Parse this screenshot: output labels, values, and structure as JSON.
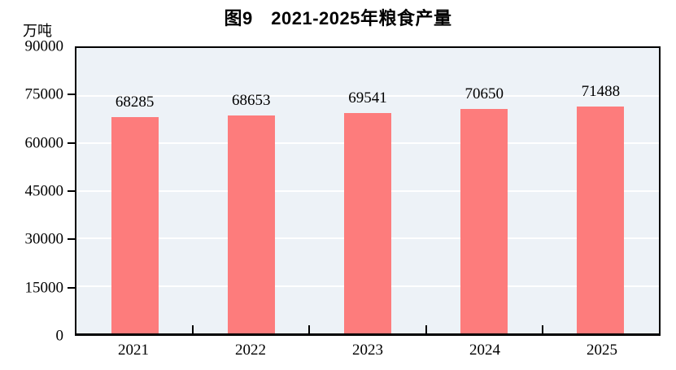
{
  "header": {
    "title": "图9　2021-2025年粮食产量",
    "unit_label": "万吨"
  },
  "chart_data": {
    "type": "bar",
    "title": "图9　2021-2025年粮食产量",
    "categories": [
      "2021",
      "2022",
      "2023",
      "2024",
      "2025"
    ],
    "values": [
      68285,
      68653,
      69541,
      70650,
      71488
    ],
    "xlabel": "",
    "ylabel": "万吨",
    "ylim": [
      0,
      90000
    ],
    "yticks": [
      0,
      15000,
      30000,
      45000,
      60000,
      75000,
      90000
    ],
    "grid": true,
    "legend_position": "none",
    "colors": {
      "bar": "#fd7c7c",
      "plot_background": "#edf2f7",
      "gridline": "#ffffff",
      "axis": "#000000",
      "text": "#000000",
      "page_background": "#ffffff"
    }
  }
}
